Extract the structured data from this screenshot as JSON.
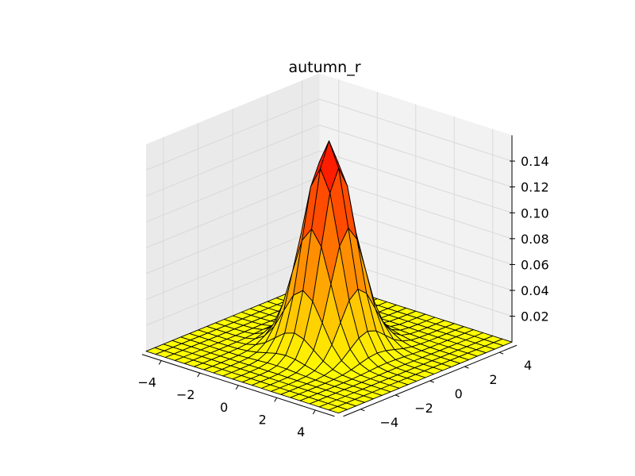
{
  "chart_data": {
    "type": "surface3d",
    "title": "autumn_r",
    "colormap": "autumn_r",
    "colors": {
      "low": "#ffff00",
      "high": "#ff0000",
      "edge": "#000000",
      "pane": "#f2f2f2",
      "grid": "#e0e0e0"
    },
    "function": "bivariate normal density, sigma = 1",
    "x_range": [
      -5,
      5
    ],
    "y_range": [
      -5,
      5
    ],
    "z_range": [
      0,
      0.16
    ],
    "grid_steps": 20,
    "peak": {
      "x": 0,
      "y": 0,
      "z": 0.159
    },
    "x_ticks": [
      -4,
      -2,
      0,
      2,
      4
    ],
    "y_ticks": [
      -4,
      -2,
      0,
      2,
      4
    ],
    "z_ticks": [
      0.02,
      0.04,
      0.06,
      0.08,
      0.1,
      0.12,
      0.14
    ],
    "x_tick_labels": [
      "−4",
      "−2",
      "0",
      "2",
      "4"
    ],
    "y_tick_labels": [
      "−4",
      "−2",
      "0",
      "2",
      "4"
    ],
    "z_tick_labels": [
      "0.02",
      "0.04",
      "0.06",
      "0.08",
      "0.10",
      "0.12",
      "0.14"
    ],
    "xlabel": "",
    "ylabel": "",
    "zlabel": "",
    "grid": true
  }
}
